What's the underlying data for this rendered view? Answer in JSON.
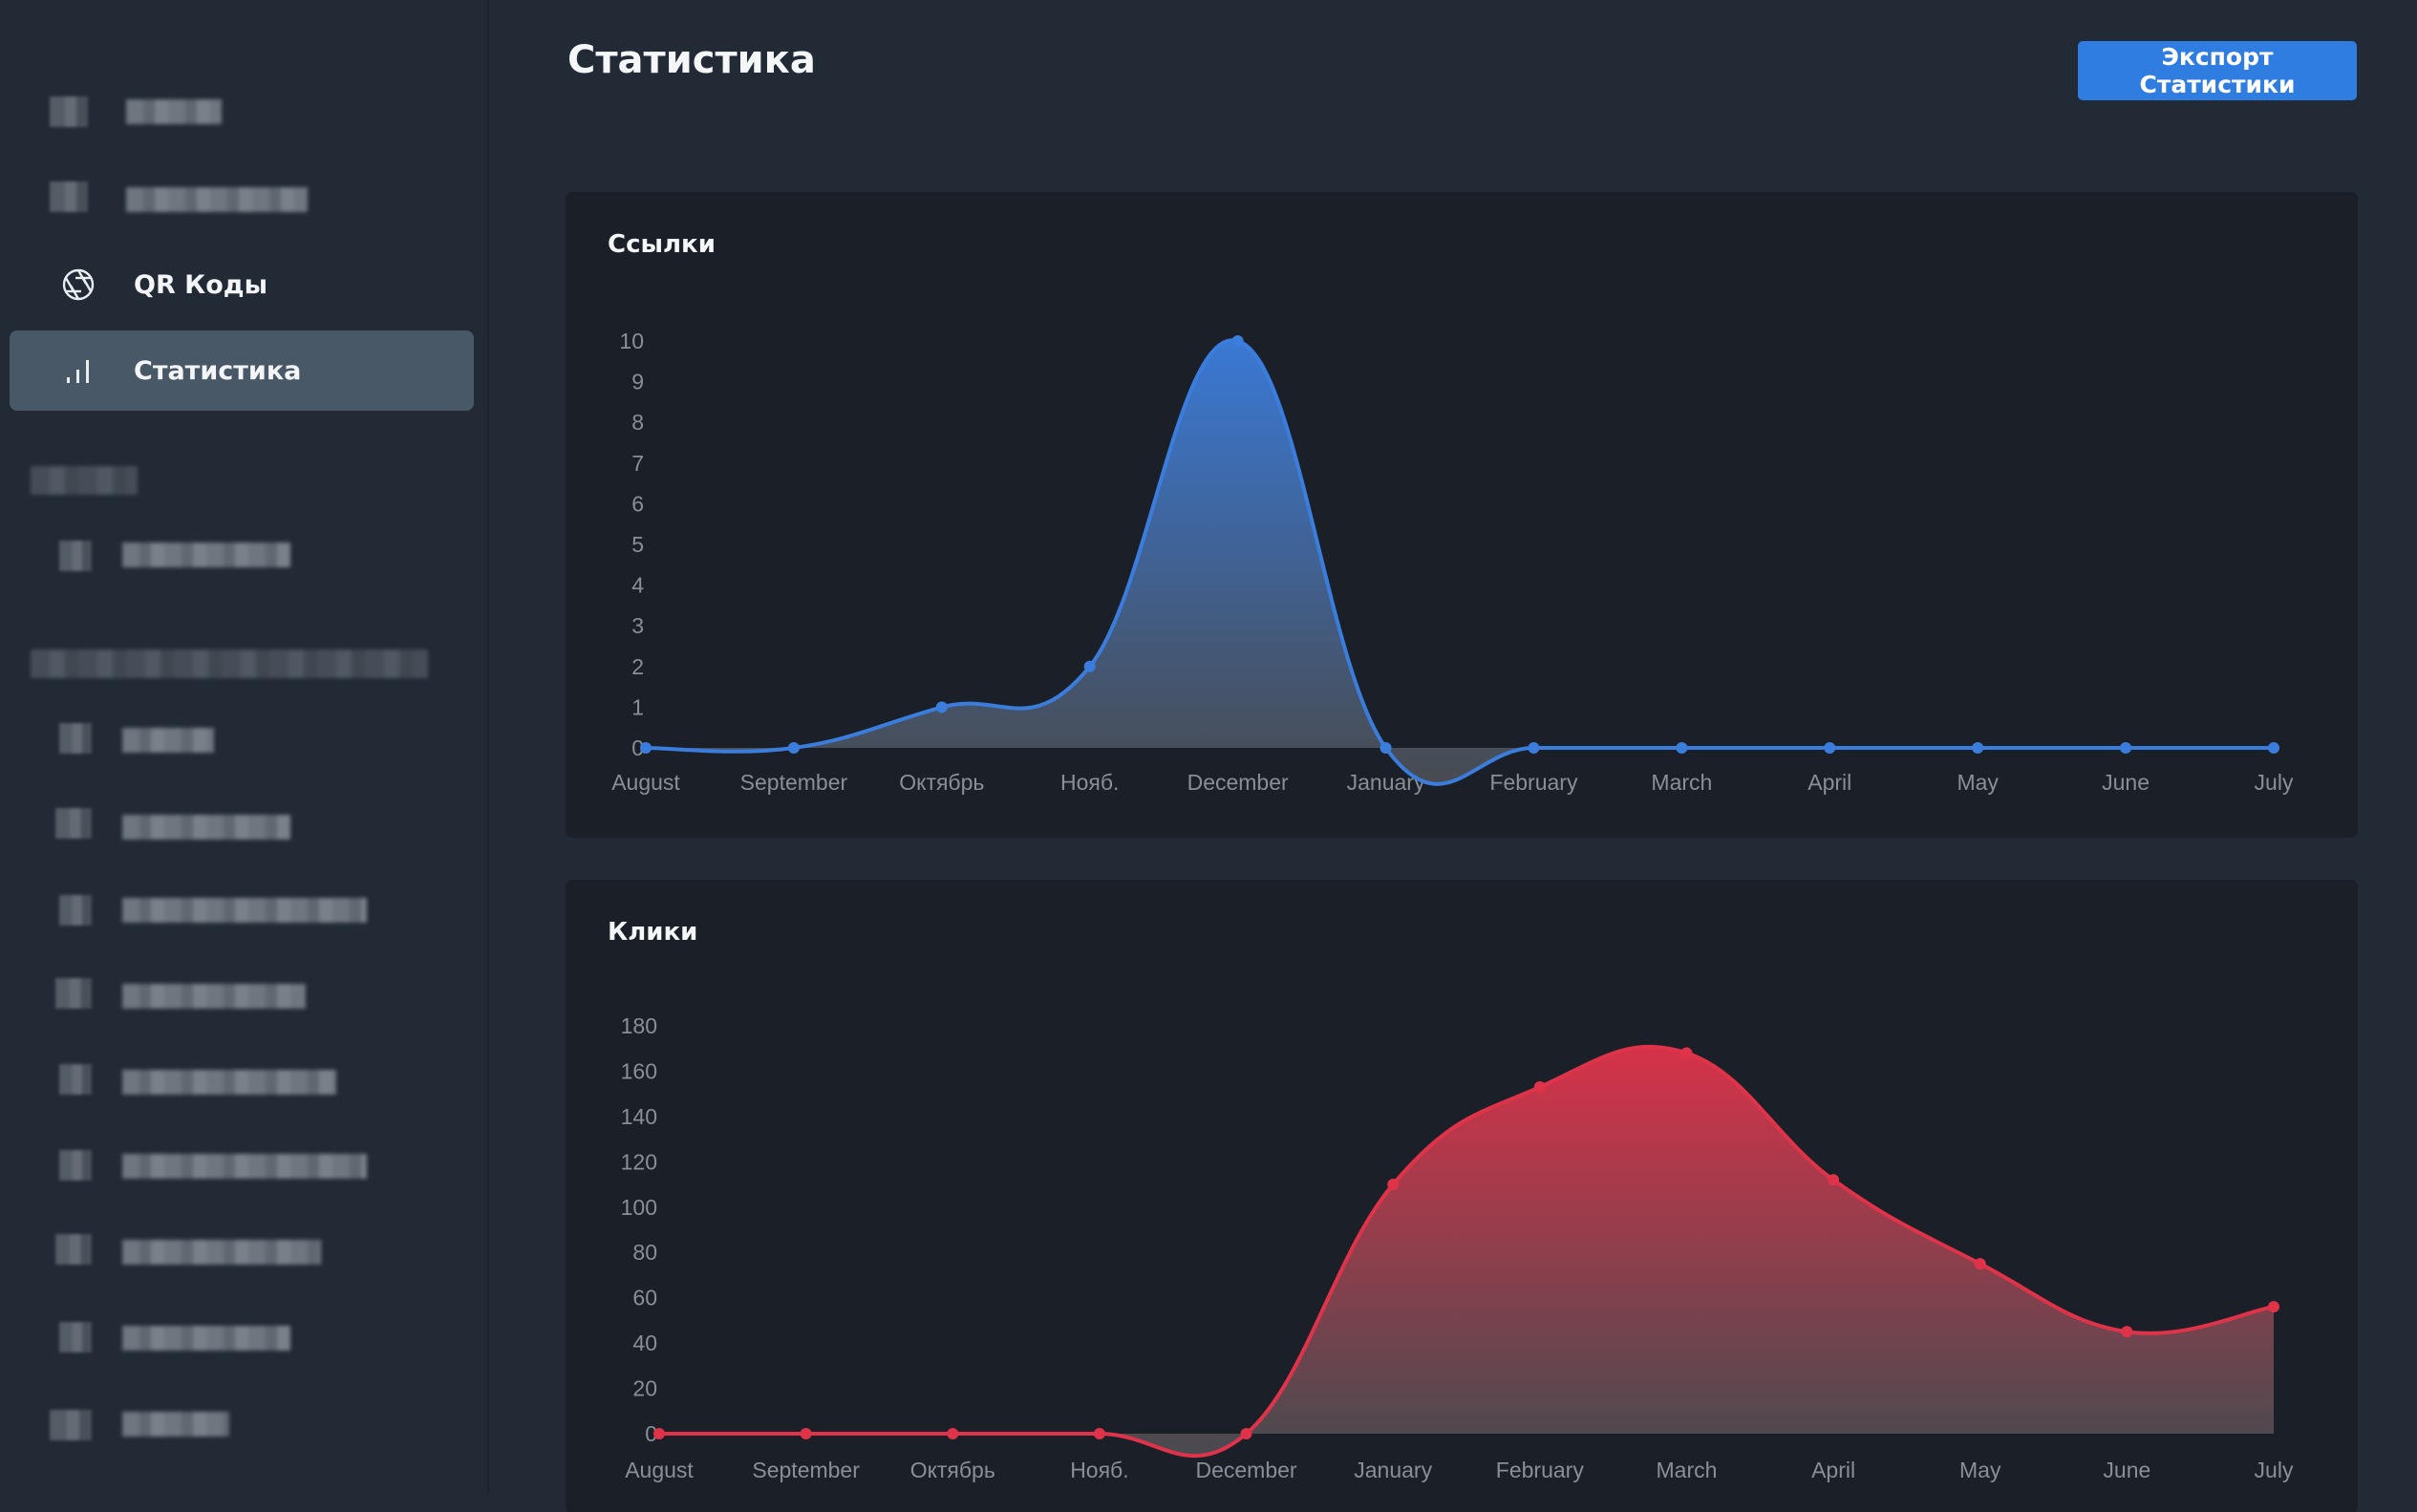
{
  "sidebar": {
    "items": [
      {
        "label": "QR Коды",
        "icon": "aperture-icon"
      },
      {
        "label": "Статистика",
        "icon": "bar-chart-icon",
        "active": true
      }
    ]
  },
  "header": {
    "title": "Статистика",
    "export_label": "Экспорт Статистики"
  },
  "colors": {
    "accent": "#2f7de1",
    "links_series": "#3b7ddd",
    "clicks_series": "#e0334a"
  },
  "chart_data": [
    {
      "type": "area",
      "title": "Ссылки",
      "categories": [
        "August",
        "September",
        "Октябрь",
        "Нояб.",
        "December",
        "January",
        "February",
        "March",
        "April",
        "May",
        "June",
        "July"
      ],
      "values": [
        0,
        0,
        1,
        2,
        10,
        0,
        0,
        0,
        0,
        0,
        0,
        0
      ],
      "ylim": [
        0,
        10
      ],
      "yticks": [
        0,
        1,
        2,
        3,
        4,
        5,
        6,
        7,
        8,
        9,
        10
      ],
      "grid": false,
      "legend": "none"
    },
    {
      "type": "area",
      "title": "Клики",
      "categories": [
        "August",
        "September",
        "Октябрь",
        "Нояб.",
        "December",
        "January",
        "February",
        "March",
        "April",
        "May",
        "June",
        "July"
      ],
      "values": [
        0,
        0,
        0,
        0,
        0,
        110,
        153,
        168,
        112,
        75,
        45,
        56
      ],
      "ylim": [
        0,
        180
      ],
      "yticks": [
        0,
        20,
        40,
        60,
        80,
        100,
        120,
        140,
        160,
        180
      ],
      "grid": false,
      "legend": "none"
    }
  ]
}
